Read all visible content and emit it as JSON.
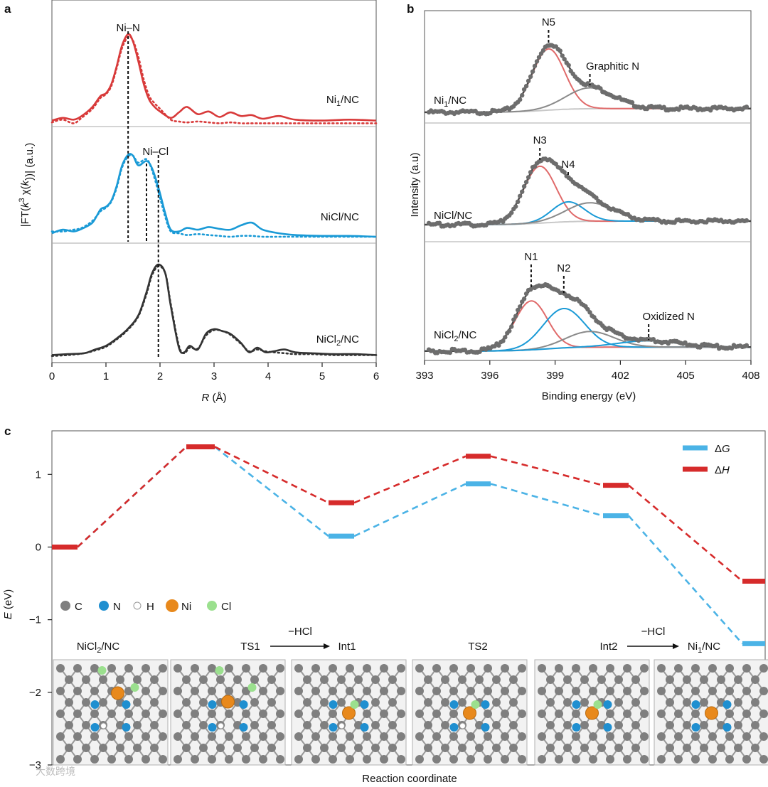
{
  "colors": {
    "red": "#d83a3a",
    "blue": "#1a9ad6",
    "black": "#333333",
    "gray": "#8a8a8a",
    "lightgray": "#c8c8c8",
    "pink": "#e06a6a",
    "dg_line": "#4bb3e6",
    "dh_line": "#d62b2b",
    "atom_C": "#7f7f7f",
    "atom_N": "#1f8fd0",
    "atom_H": "#ffffff",
    "atom_Ni": "#e8891c",
    "atom_Cl": "#9be08e"
  },
  "panels": {
    "a": "a",
    "b": "b",
    "c": "c"
  },
  "chart_data": [
    {
      "type": "line",
      "panel": "a",
      "xlabel_prefix": "R",
      "xlabel_suffix": " (Å)",
      "ylabel": "|FT(k³ χ(k))| (a.u.)",
      "xlim": [
        0,
        6
      ],
      "xticks": [
        "0",
        "1",
        "2",
        "3",
        "4",
        "5",
        "6"
      ],
      "annotations": [
        {
          "text": "Ni–N",
          "x": 1.41
        },
        {
          "text": "Ni–Cl",
          "x": 1.97
        }
      ],
      "series": [
        {
          "name": "Ni1/NC",
          "label_main": "Ni",
          "label_sub": "1",
          "label_rest": "/NC",
          "color": "red",
          "x": [
            0,
            0.2,
            0.4,
            0.55,
            0.75,
            0.9,
            1.0,
            1.1,
            1.2,
            1.3,
            1.41,
            1.5,
            1.6,
            1.7,
            1.8,
            1.9,
            2.0,
            2.2,
            2.35,
            2.5,
            2.7,
            2.9,
            3.1,
            3.3,
            3.5,
            3.7,
            3.9,
            4.2,
            4.5,
            5.0,
            5.5,
            6.0
          ],
          "fit": [
            0.05,
            0.08,
            0.06,
            0.1,
            0.2,
            0.32,
            0.35,
            0.45,
            0.65,
            0.88,
            1.0,
            0.92,
            0.7,
            0.45,
            0.28,
            0.2,
            0.15,
            0.08,
            0.14,
            0.2,
            0.12,
            0.15,
            0.09,
            0.14,
            0.1,
            0.11,
            0.07,
            0.1,
            0.06,
            0.05,
            0.06,
            0.05
          ],
          "data": [
            0.03,
            0.06,
            0.02,
            0.08,
            0.18,
            0.3,
            0.34,
            0.43,
            0.63,
            0.85,
            0.97,
            0.93,
            0.75,
            0.5,
            0.32,
            0.24,
            0.18,
            0.06,
            0.04,
            0.03,
            0.04,
            0.03,
            0.02,
            0.03,
            0.02,
            0.02,
            0.02,
            0.02,
            0.02,
            0.02,
            0.02,
            0.02
          ]
        },
        {
          "name": "NiCl/NC",
          "label_main": "NiCl/NC",
          "color": "blue",
          "x": [
            0,
            0.2,
            0.4,
            0.55,
            0.75,
            0.9,
            1.0,
            1.1,
            1.2,
            1.3,
            1.41,
            1.5,
            1.6,
            1.75,
            1.85,
            1.97,
            2.1,
            2.2,
            2.35,
            2.5,
            2.7,
            2.9,
            3.1,
            3.3,
            3.5,
            3.7,
            3.9,
            4.2,
            4.5,
            5.0,
            5.5,
            6.0
          ],
          "fit": [
            0.08,
            0.12,
            0.1,
            0.13,
            0.2,
            0.35,
            0.38,
            0.45,
            0.62,
            0.85,
            0.97,
            0.96,
            0.85,
            0.9,
            0.82,
            0.6,
            0.3,
            0.12,
            0.1,
            0.14,
            0.12,
            0.15,
            0.13,
            0.12,
            0.17,
            0.2,
            0.12,
            0.08,
            0.06,
            0.05,
            0.05,
            0.04
          ],
          "data": [
            0.1,
            0.1,
            0.12,
            0.14,
            0.22,
            0.33,
            0.37,
            0.44,
            0.6,
            0.83,
            0.95,
            0.96,
            0.88,
            0.92,
            0.8,
            0.55,
            0.26,
            0.1,
            0.08,
            0.06,
            0.07,
            0.06,
            0.05,
            0.04,
            0.05,
            0.05,
            0.04,
            0.04,
            0.04,
            0.04,
            0.04,
            0.04
          ]
        },
        {
          "name": "NiCl2/NC",
          "label_main": "NiCl",
          "label_sub": "2",
          "label_rest": "/NC",
          "color": "black",
          "x": [
            0,
            0.3,
            0.6,
            0.8,
            1.0,
            1.2,
            1.4,
            1.6,
            1.75,
            1.85,
            1.97,
            2.1,
            2.2,
            2.35,
            2.45,
            2.55,
            2.7,
            2.85,
            3.0,
            3.15,
            3.3,
            3.5,
            3.65,
            3.8,
            3.95,
            4.1,
            4.3,
            4.5,
            4.8,
            5.2,
            5.6,
            6.0
          ],
          "fit": [
            0.02,
            0.03,
            0.04,
            0.08,
            0.12,
            0.2,
            0.3,
            0.45,
            0.7,
            0.9,
            1.0,
            0.9,
            0.55,
            0.1,
            0.05,
            0.12,
            0.08,
            0.25,
            0.3,
            0.28,
            0.25,
            0.15,
            0.05,
            0.1,
            0.05,
            0.06,
            0.08,
            0.05,
            0.04,
            0.03,
            0.03,
            0.02
          ],
          "data": [
            0.01,
            0.02,
            0.04,
            0.07,
            0.11,
            0.19,
            0.29,
            0.44,
            0.68,
            0.88,
            0.98,
            0.9,
            0.57,
            0.12,
            0.04,
            0.1,
            0.09,
            0.23,
            0.29,
            0.28,
            0.24,
            0.14,
            0.06,
            0.08,
            0.06,
            0.05,
            0.04,
            0.03,
            0.03,
            0.02,
            0.02,
            0.02
          ]
        }
      ]
    },
    {
      "type": "line",
      "panel": "b",
      "xlabel": "Binding energy (eV)",
      "ylabel": "Intensity (a.u)",
      "xlim": [
        393,
        408
      ],
      "xticks": [
        "393",
        "396",
        "399",
        "402",
        "405",
        "408"
      ],
      "subplots": [
        {
          "label_main": "Ni",
          "label_sub": "1",
          "label_rest": "/NC",
          "peaks": [
            {
              "name": "N5",
              "center": 398.7,
              "sigma": 0.75,
              "amp": 0.82,
              "color": "pink"
            },
            {
              "name": "Graphitic N",
              "center": 400.6,
              "sigma": 1.1,
              "amp": 0.28,
              "color": "gray"
            }
          ],
          "labels": [
            {
              "text": "N5",
              "x": 398.7
            },
            {
              "text": "Graphitic N",
              "x": 400.6
            }
          ]
        },
        {
          "label_main": "NiCl/NC",
          "peaks": [
            {
              "name": "N3",
              "center": 398.3,
              "sigma": 0.75,
              "amp": 0.8,
              "color": "pink"
            },
            {
              "name": "N4",
              "center": 399.6,
              "sigma": 0.75,
              "amp": 0.28,
              "color": "blue"
            },
            {
              "name": "Graphitic N",
              "center": 400.6,
              "sigma": 1.1,
              "amp": 0.26,
              "color": "gray"
            }
          ],
          "labels": [
            {
              "text": "N3",
              "x": 398.3
            },
            {
              "text": "N4",
              "x": 399.6
            }
          ]
        },
        {
          "label_main": "NiCl",
          "label_sub": "2",
          "label_rest": "/NC",
          "peaks": [
            {
              "name": "N1",
              "center": 397.9,
              "sigma": 0.75,
              "amp": 0.62,
              "color": "pink"
            },
            {
              "name": "N2",
              "center": 399.4,
              "sigma": 0.95,
              "amp": 0.5,
              "color": "blue"
            },
            {
              "name": "Graphitic N",
              "center": 400.6,
              "sigma": 1.1,
              "amp": 0.2,
              "color": "gray"
            },
            {
              "name": "Oxidized N",
              "center": 403.3,
              "sigma": 1.4,
              "amp": 0.08,
              "color": "blue"
            }
          ],
          "labels": [
            {
              "text": "N1",
              "x": 397.9
            },
            {
              "text": "N2",
              "x": 399.4
            },
            {
              "text": "Oxidized N",
              "x": 403.3
            }
          ]
        }
      ]
    },
    {
      "type": "line",
      "panel": "c",
      "xlabel": "Reaction coordinate",
      "ylabel_main": "E",
      "ylabel_rest": " (eV)",
      "ylim": [
        -3,
        1.6
      ],
      "yticks": [
        "1",
        "0",
        "−1",
        "−2",
        "−3"
      ],
      "ytick_values": [
        1,
        0,
        -1,
        -2,
        -3
      ],
      "legend": [
        {
          "delta": "Δ",
          "sym": "G",
          "color": "dg_line"
        },
        {
          "delta": "Δ",
          "sym": "H",
          "color": "dh_line"
        }
      ],
      "states": [
        "NiCl2/NC",
        "TS1",
        "Int1",
        "TS2",
        "Int2",
        "Ni1/NC"
      ],
      "dG": [
        0.0,
        1.38,
        0.15,
        0.87,
        0.43,
        -1.33
      ],
      "dH": [
        0.0,
        1.38,
        0.61,
        1.25,
        0.85,
        -0.47
      ],
      "atom_legend": [
        "C",
        "N",
        "H",
        "Ni",
        "Cl"
      ],
      "state_labels": [
        {
          "main": "NiCl",
          "sub": "2",
          "rest": "/NC"
        },
        {
          "main": "TS1"
        },
        {
          "main": "Int1"
        },
        {
          "main": "TS2"
        },
        {
          "main": "Int2"
        },
        {
          "main": "Ni",
          "sub": "1",
          "rest": "/NC"
        }
      ],
      "arrows": [
        {
          "text": "−HCl"
        },
        {
          "text": "−HCl"
        }
      ]
    }
  ],
  "watermark": "大数跨境"
}
